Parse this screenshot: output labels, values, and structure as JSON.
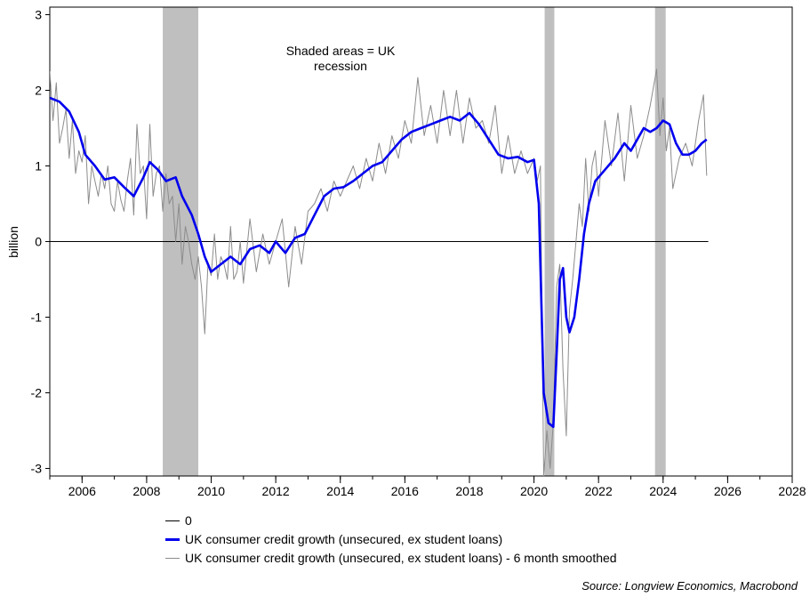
{
  "chart_data": {
    "type": "line",
    "ylabel": "billion",
    "ylim": [
      -3.1,
      3.1
    ],
    "xlim": [
      2005.0,
      2028.0
    ],
    "yticks": [
      -3,
      -2,
      -1,
      0,
      1,
      2,
      3
    ],
    "yticklabels": [
      "-3",
      "-2",
      "-1",
      "0",
      "1",
      "2",
      "3"
    ],
    "xticks": [
      2006,
      2008,
      2010,
      2012,
      2014,
      2016,
      2018,
      2020,
      2022,
      2024,
      2026,
      2028
    ],
    "xticklabels": [
      "2006",
      "2008",
      "2010",
      "2012",
      "2014",
      "2016",
      "2018",
      "2020",
      "2022",
      "2024",
      "2026",
      "2028"
    ],
    "annotation": {
      "line1": "Shaded areas = UK",
      "line2": "recession"
    },
    "recessions": [
      {
        "start": 2008.5,
        "end": 2009.6
      },
      {
        "start": 2020.33,
        "end": 2020.63
      },
      {
        "start": 2023.75,
        "end": 2024.08
      }
    ],
    "colors": {
      "zero": "#000000",
      "blue": "#0000ee",
      "gray": "#8c8c8c",
      "shade": "#bfbfbf"
    },
    "series": [
      {
        "name": "0",
        "x": [
          2005.0,
          2025.4
        ],
        "values": [
          0,
          0
        ]
      },
      {
        "name": "UK consumer credit growth (unsecured, ex student loans)",
        "x": [
          2005.0,
          2005.3,
          2005.6,
          2005.9,
          2006.1,
          2006.4,
          2006.7,
          2007.0,
          2007.3,
          2007.6,
          2007.9,
          2008.1,
          2008.35,
          2008.6,
          2008.9,
          2009.1,
          2009.4,
          2009.6,
          2009.8,
          2010.0,
          2010.3,
          2010.6,
          2010.9,
          2011.2,
          2011.5,
          2011.8,
          2012.0,
          2012.3,
          2012.6,
          2012.9,
          2013.2,
          2013.5,
          2013.8,
          2014.1,
          2014.4,
          2014.7,
          2015.0,
          2015.3,
          2015.6,
          2015.9,
          2016.2,
          2016.5,
          2016.8,
          2017.1,
          2017.4,
          2017.7,
          2018.0,
          2018.3,
          2018.6,
          2018.9,
          2019.2,
          2019.5,
          2019.8,
          2020.0,
          2020.15,
          2020.3,
          2020.45,
          2020.6,
          2020.7,
          2020.8,
          2020.9,
          2021.0,
          2021.1,
          2021.25,
          2021.4,
          2021.55,
          2021.7,
          2021.9,
          2022.2,
          2022.5,
          2022.8,
          2023.0,
          2023.2,
          2023.4,
          2023.6,
          2023.8,
          2024.0,
          2024.2,
          2024.4,
          2024.6,
          2024.8,
          2025.0,
          2025.2,
          2025.35
        ],
        "values": [
          1.9,
          1.85,
          1.72,
          1.45,
          1.15,
          1.0,
          0.82,
          0.85,
          0.72,
          0.6,
          0.85,
          1.05,
          0.95,
          0.8,
          0.85,
          0.6,
          0.35,
          0.1,
          -0.2,
          -0.4,
          -0.3,
          -0.2,
          -0.3,
          -0.1,
          -0.05,
          -0.15,
          0.0,
          -0.15,
          0.05,
          0.1,
          0.35,
          0.6,
          0.7,
          0.72,
          0.8,
          0.9,
          1.0,
          1.05,
          1.2,
          1.35,
          1.45,
          1.5,
          1.55,
          1.6,
          1.65,
          1.6,
          1.7,
          1.55,
          1.35,
          1.15,
          1.1,
          1.12,
          1.05,
          1.08,
          0.5,
          -2.0,
          -2.4,
          -2.45,
          -1.5,
          -0.5,
          -0.35,
          -1.0,
          -1.2,
          -1.0,
          -0.5,
          0.1,
          0.5,
          0.8,
          0.95,
          1.1,
          1.3,
          1.2,
          1.35,
          1.5,
          1.45,
          1.5,
          1.6,
          1.55,
          1.3,
          1.15,
          1.15,
          1.2,
          1.3,
          1.35
        ]
      },
      {
        "name": "UK consumer credit growth (unsecured, ex student loans)  - 6 month smoothed",
        "x": [
          2005.0,
          2005.1,
          2005.2,
          2005.3,
          2005.4,
          2005.5,
          2005.6,
          2005.7,
          2005.8,
          2005.9,
          2006.0,
          2006.1,
          2006.2,
          2006.3,
          2006.4,
          2006.5,
          2006.6,
          2006.7,
          2006.8,
          2006.9,
          2007.0,
          2007.1,
          2007.2,
          2007.3,
          2007.4,
          2007.5,
          2007.6,
          2007.7,
          2007.8,
          2007.9,
          2008.0,
          2008.1,
          2008.2,
          2008.3,
          2008.4,
          2008.5,
          2008.6,
          2008.7,
          2008.8,
          2008.9,
          2009.0,
          2009.1,
          2009.2,
          2009.3,
          2009.4,
          2009.5,
          2009.6,
          2009.7,
          2009.8,
          2009.9,
          2010.0,
          2010.1,
          2010.2,
          2010.3,
          2010.4,
          2010.5,
          2010.6,
          2010.7,
          2010.8,
          2010.9,
          2011.0,
          2011.2,
          2011.4,
          2011.6,
          2011.8,
          2012.0,
          2012.2,
          2012.4,
          2012.6,
          2012.8,
          2013.0,
          2013.2,
          2013.4,
          2013.6,
          2013.8,
          2014.0,
          2014.2,
          2014.4,
          2014.6,
          2014.8,
          2015.0,
          2015.2,
          2015.4,
          2015.6,
          2015.8,
          2016.0,
          2016.2,
          2016.4,
          2016.6,
          2016.8,
          2017.0,
          2017.2,
          2017.4,
          2017.6,
          2017.8,
          2018.0,
          2018.2,
          2018.4,
          2018.6,
          2018.8,
          2019.0,
          2019.2,
          2019.4,
          2019.6,
          2019.8,
          2020.0,
          2020.1,
          2020.2,
          2020.3,
          2020.4,
          2020.5,
          2020.6,
          2020.7,
          2020.8,
          2020.9,
          2021.0,
          2021.1,
          2021.2,
          2021.3,
          2021.4,
          2021.5,
          2021.6,
          2021.7,
          2021.8,
          2021.9,
          2022.0,
          2022.2,
          2022.4,
          2022.6,
          2022.8,
          2023.0,
          2023.2,
          2023.4,
          2023.6,
          2023.8,
          2023.9,
          2024.0,
          2024.1,
          2024.2,
          2024.3,
          2024.5,
          2024.7,
          2024.9,
          2025.1,
          2025.25,
          2025.35
        ],
        "values": [
          2.25,
          1.6,
          2.1,
          1.3,
          1.5,
          1.75,
          1.1,
          1.6,
          0.9,
          1.2,
          1.05,
          1.4,
          0.5,
          1.0,
          0.8,
          0.6,
          0.9,
          0.7,
          1.0,
          0.5,
          0.4,
          0.8,
          0.55,
          0.4,
          0.8,
          1.1,
          0.35,
          1.55,
          0.9,
          1.0,
          0.3,
          1.55,
          0.6,
          0.9,
          1.0,
          0.4,
          0.9,
          0.5,
          0.6,
          0.0,
          0.5,
          -0.3,
          0.2,
          0.0,
          -0.3,
          -0.5,
          -0.2,
          -0.6,
          -1.22,
          -0.3,
          -0.45,
          0.1,
          -0.5,
          -0.2,
          -0.3,
          -0.5,
          0.2,
          -0.5,
          -0.4,
          0.0,
          -0.55,
          0.3,
          -0.4,
          0.1,
          -0.3,
          0.0,
          0.3,
          -0.6,
          0.2,
          -0.3,
          0.4,
          0.5,
          0.7,
          0.4,
          0.8,
          0.6,
          0.8,
          1.0,
          0.7,
          1.1,
          0.8,
          1.3,
          0.9,
          1.4,
          1.1,
          1.6,
          1.3,
          2.17,
          1.4,
          1.8,
          1.3,
          2.0,
          1.4,
          2.0,
          1.3,
          1.9,
          1.5,
          1.6,
          1.3,
          1.8,
          0.9,
          1.4,
          0.9,
          1.2,
          0.9,
          1.1,
          0.8,
          1.0,
          -3.1,
          -2.5,
          -3.0,
          -2.4,
          -0.6,
          -0.3,
          -1.7,
          -2.57,
          -0.9,
          -0.5,
          0.0,
          0.5,
          0.2,
          1.1,
          0.4,
          1.0,
          1.2,
          0.6,
          1.6,
          1.0,
          1.7,
          0.8,
          1.8,
          1.1,
          1.4,
          1.8,
          2.28,
          1.4,
          1.9,
          1.2,
          1.5,
          0.7,
          1.1,
          1.3,
          1.0,
          1.6,
          1.94,
          0.87
        ]
      }
    ],
    "legend": {
      "zero": "0",
      "raw": "UK consumer credit growth (unsecured, ex student loans)",
      "smoothed": "UK consumer credit growth (unsecured, ex student loans)  - 6 month smoothed"
    },
    "source": "Source: Longview Economics, Macrobond"
  }
}
